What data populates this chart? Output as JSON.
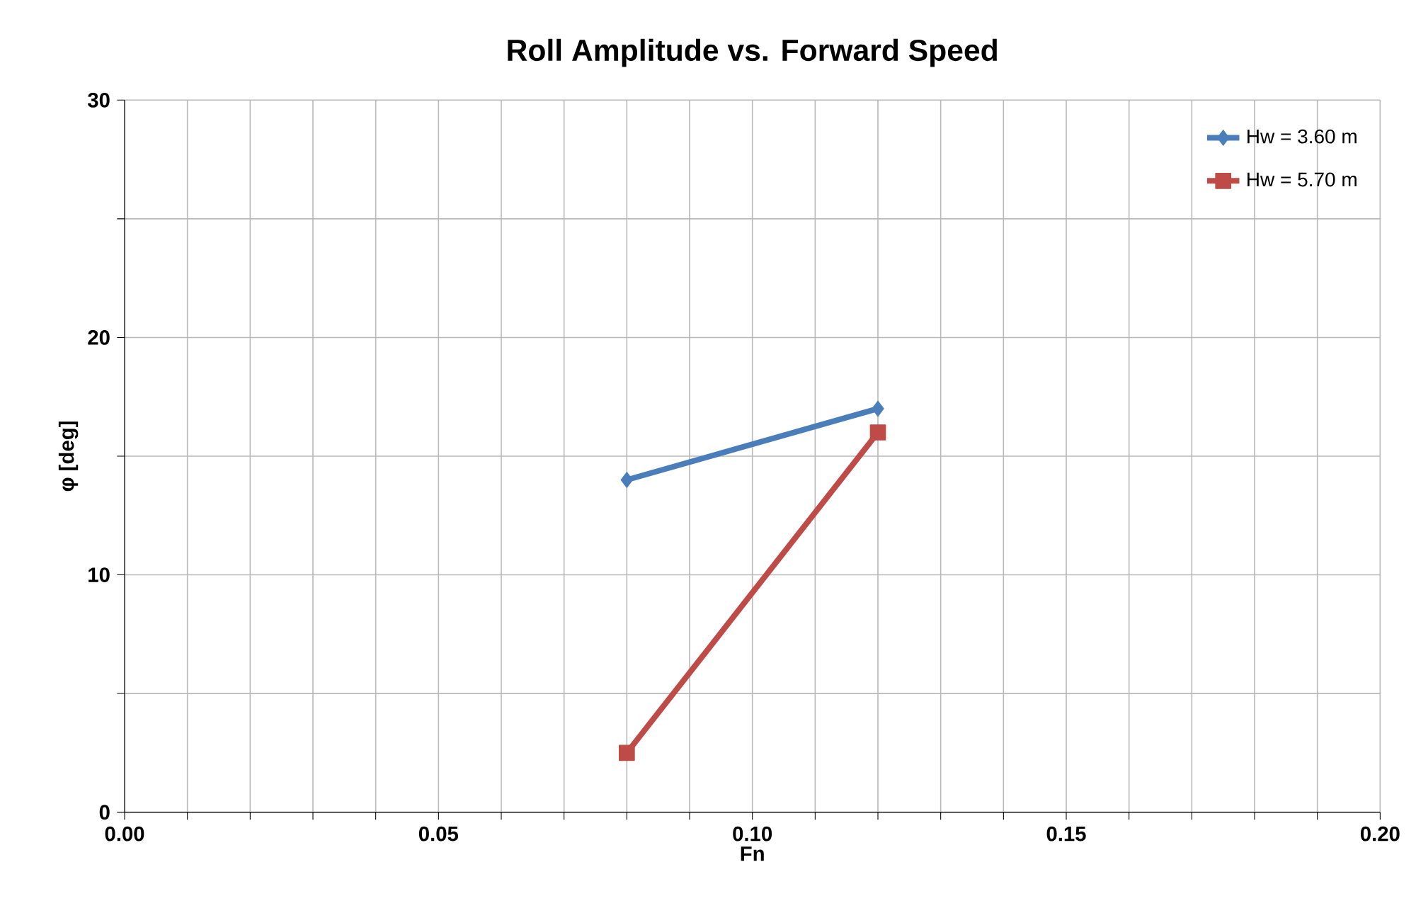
{
  "chart_data": {
    "type": "line",
    "title": "Roll Amplitude vs. Forward Speed",
    "xlabel": "Fn",
    "ylabel": "φ [deg]",
    "x": [
      0.08,
      0.12
    ],
    "series": [
      {
        "name": "Hw = 3.60 m",
        "color": "#4a7ebb",
        "marker": "diamond",
        "values": [
          14,
          17
        ]
      },
      {
        "name": "Hw = 5.70 m",
        "color": "#be4b48",
        "marker": "square",
        "values": [
          2.5,
          16
        ]
      }
    ],
    "xlim": [
      0,
      0.2
    ],
    "xticks": [
      {
        "value": 0,
        "label": "0.00"
      },
      {
        "value": 0.01,
        "label": null
      },
      {
        "value": 0.02,
        "label": null
      },
      {
        "value": 0.03,
        "label": null
      },
      {
        "value": 0.04,
        "label": null
      },
      {
        "value": 0.05,
        "label": "0.05"
      },
      {
        "value": 0.06,
        "label": null
      },
      {
        "value": 0.07,
        "label": null
      },
      {
        "value": 0.08,
        "label": null
      },
      {
        "value": 0.09,
        "label": null
      },
      {
        "value": 0.1,
        "label": "0.10"
      },
      {
        "value": 0.11,
        "label": null
      },
      {
        "value": 0.12,
        "label": null
      },
      {
        "value": 0.13,
        "label": null
      },
      {
        "value": 0.14,
        "label": null
      },
      {
        "value": 0.15,
        "label": "0.15"
      },
      {
        "value": 0.16,
        "label": null
      },
      {
        "value": 0.17,
        "label": null
      },
      {
        "value": 0.18,
        "label": null
      },
      {
        "value": 0.19,
        "label": null
      },
      {
        "value": 0.2,
        "label": "0.20"
      }
    ],
    "ylim": [
      0,
      30
    ],
    "yticks": [
      0,
      {
        "value": 5,
        "label": null
      },
      10,
      {
        "value": 15,
        "label": null
      },
      20,
      {
        "value": 25,
        "label": null
      },
      30
    ],
    "grid": true,
    "legend": "top right",
    "line_style": "solid"
  }
}
